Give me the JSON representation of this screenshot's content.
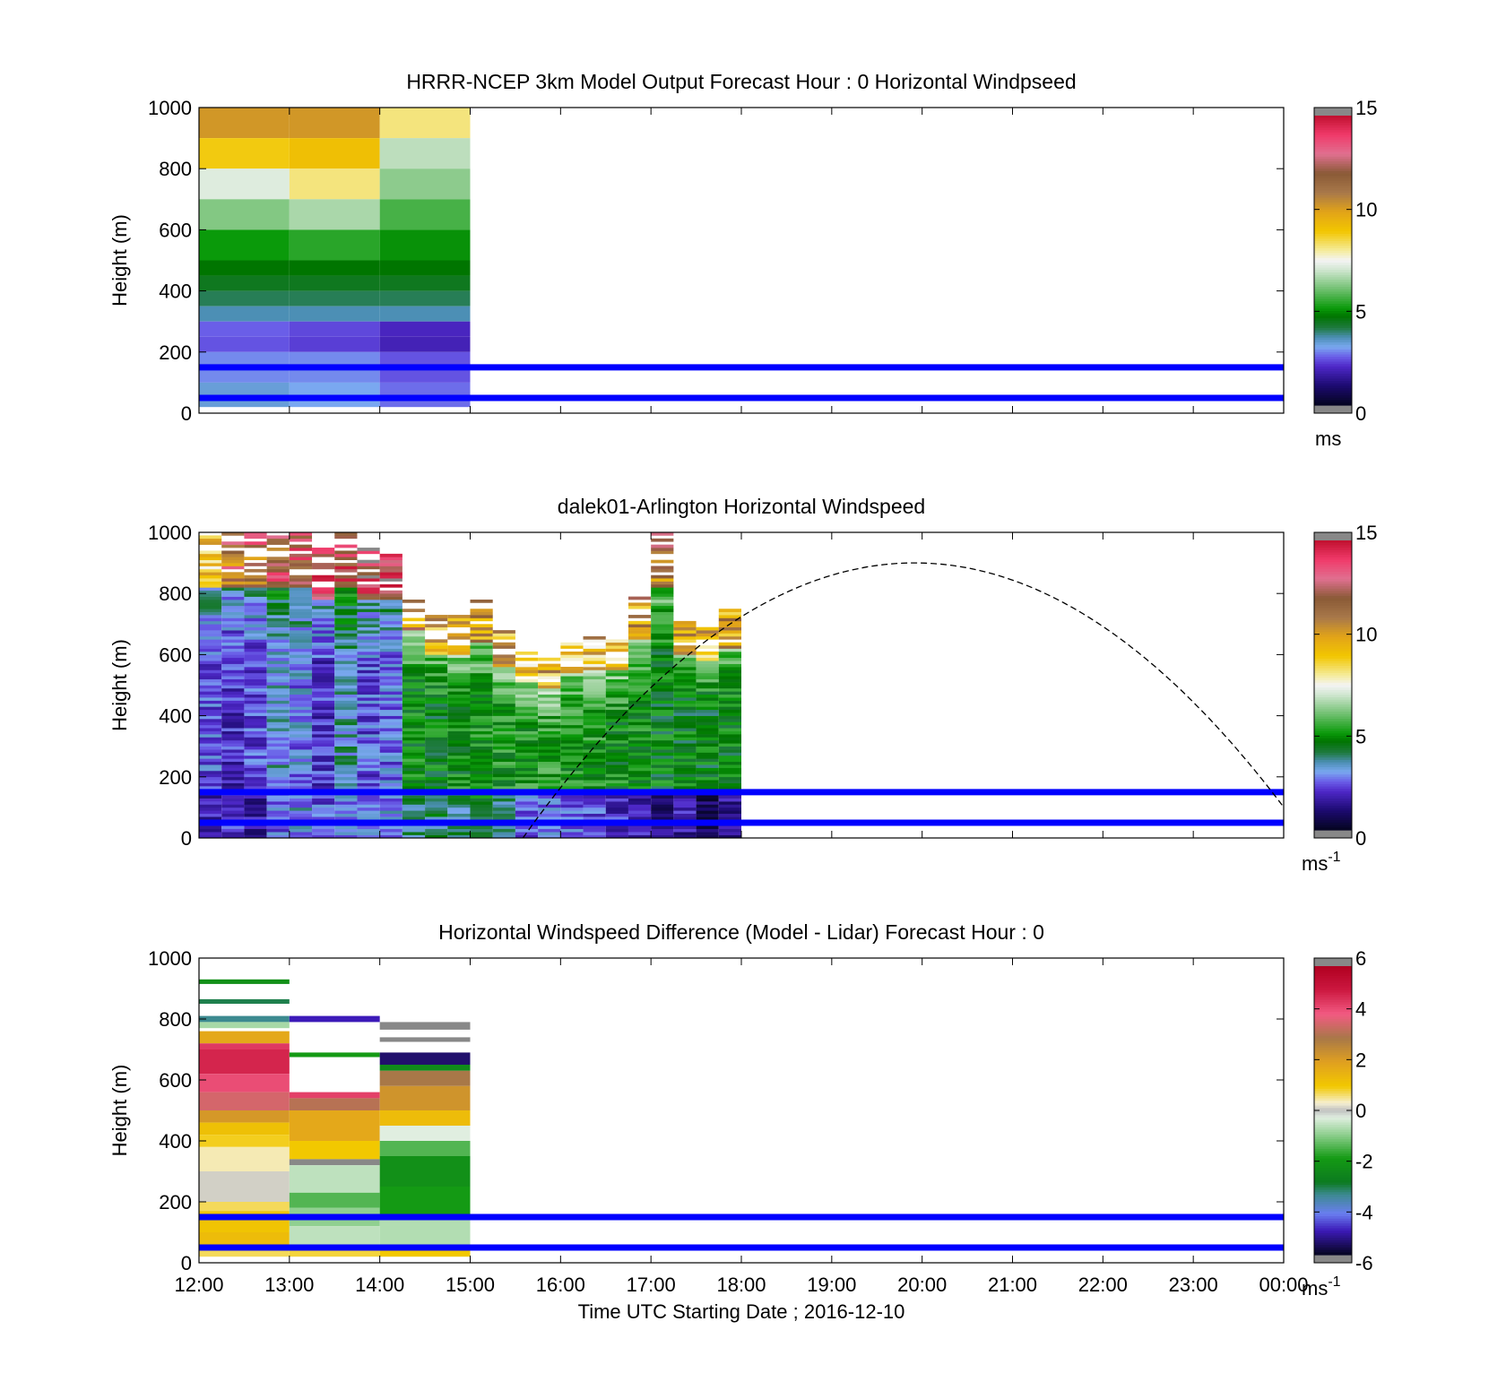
{
  "figure": {
    "xlabel": "Time UTC  Starting Date ; 2016-12-10",
    "x_tick_labels": [
      "12:00",
      "13:00",
      "14:00",
      "15:00",
      "16:00",
      "17:00",
      "18:00",
      "19:00",
      "20:00",
      "21:00",
      "22:00",
      "23:00",
      "00:00"
    ],
    "ylabel": "Height (m)",
    "y_tick_labels": [
      "0",
      "200",
      "400",
      "600",
      "800",
      "1000"
    ]
  },
  "colors": {
    "reference_lines": "#0000ff",
    "missing_gray": "#888888"
  },
  "chart_data": [
    {
      "type": "heatmap",
      "title": "HRRR-NCEP 3km Model Output   Forecast Hour : 0 Horizontal Windpseed",
      "xlabel": "",
      "ylabel": "Height (m)",
      "xlim": [
        "12:00",
        "00:00"
      ],
      "ylim": [
        0,
        1000
      ],
      "colorbar": {
        "min": 0,
        "max": 15,
        "ticks": [
          "0",
          "5",
          "10",
          "15"
        ],
        "unit": "ms",
        "unit_sup": ""
      },
      "reference_lines_m": [
        50,
        150
      ],
      "columns": [
        {
          "start": "12:00",
          "end": "13:00",
          "cells": [
            [
              1000,
              900,
              10.3
            ],
            [
              900,
              800,
              8.9
            ],
            [
              800,
              700,
              7.2
            ],
            [
              700,
              600,
              6.2
            ],
            [
              600,
              500,
              5.0
            ],
            [
              500,
              450,
              4.6
            ],
            [
              450,
              400,
              4.3
            ],
            [
              400,
              350,
              3.9
            ],
            [
              350,
              300,
              3.5
            ],
            [
              300,
              250,
              2.5
            ],
            [
              250,
              200,
              2.4
            ],
            [
              200,
              100,
              2.8
            ],
            [
              100,
              20,
              3.2
            ]
          ]
        },
        {
          "start": "13:00",
          "end": "14:00",
          "cells": [
            [
              1000,
              900,
              10.3
            ],
            [
              900,
              800,
              9.2
            ],
            [
              800,
              700,
              8.2
            ],
            [
              700,
              600,
              6.6
            ],
            [
              600,
              500,
              5.3
            ],
            [
              500,
              450,
              4.6
            ],
            [
              450,
              400,
              4.3
            ],
            [
              400,
              350,
              3.9
            ],
            [
              350,
              300,
              3.5
            ],
            [
              300,
              250,
              2.3
            ],
            [
              250,
              200,
              2.2
            ],
            [
              200,
              100,
              2.8
            ],
            [
              100,
              20,
              3.0
            ]
          ]
        },
        {
          "start": "14:00",
          "end": "15:00",
          "cells": [
            [
              1000,
              900,
              8.2
            ],
            [
              900,
              800,
              6.8
            ],
            [
              800,
              700,
              6.3
            ],
            [
              700,
              600,
              5.6
            ],
            [
              600,
              500,
              4.9
            ],
            [
              500,
              450,
              4.6
            ],
            [
              450,
              400,
              4.3
            ],
            [
              400,
              350,
              3.9
            ],
            [
              350,
              300,
              3.5
            ],
            [
              300,
              250,
              1.9
            ],
            [
              250,
              200,
              1.8
            ],
            [
              200,
              100,
              2.4
            ],
            [
              100,
              20,
              2.6
            ]
          ]
        }
      ]
    },
    {
      "type": "heatmap",
      "title": "dalek01-Arlington  Horizontal Windspeed",
      "xlabel": "",
      "ylabel": "Height (m)",
      "xlim": [
        "12:00",
        "00:00"
      ],
      "ylim": [
        0,
        1000
      ],
      "colorbar": {
        "min": 0,
        "max": 15,
        "ticks": [
          "0",
          "5",
          "10",
          "15"
        ],
        "unit": "ms",
        "unit_sup": "-1"
      },
      "reference_lines_m": [
        50,
        150
      ],
      "overlay_curve": {
        "style": "dashed",
        "peak_height_m": 900,
        "peak_time": "19:55",
        "zero_time": "15:35",
        "end_time": "00:00",
        "end_height_m": 75
      },
      "lidar_profiles": [
        {
          "start": "12:00",
          "end": "12:15",
          "top_m": 1000,
          "low_jet": 1.8,
          "mid": 2.4,
          "upper": 9.5
        },
        {
          "start": "12:15",
          "end": "12:30",
          "top_m": 1000,
          "low_jet": 2.2,
          "mid": 2.0,
          "upper": 11.5
        },
        {
          "start": "12:30",
          "end": "12:45",
          "top_m": 1000,
          "low_jet": 1.6,
          "mid": 2.2,
          "upper": 12.0
        },
        {
          "start": "12:45",
          "end": "13:00",
          "top_m": 1000,
          "low_jet": 2.6,
          "mid": 3.2,
          "upper": 12.5
        },
        {
          "start": "13:00",
          "end": "13:15",
          "top_m": 1000,
          "low_jet": 3.0,
          "mid": 2.8,
          "upper": 12.8
        },
        {
          "start": "13:15",
          "end": "13:30",
          "top_m": 950,
          "low_jet": 2.4,
          "mid": 2.1,
          "upper": 13.0
        },
        {
          "start": "13:30",
          "end": "13:45",
          "top_m": 1000,
          "low_jet": 2.8,
          "mid": 3.5,
          "upper": 13.2
        },
        {
          "start": "13:45",
          "end": "14:00",
          "top_m": 950,
          "low_jet": 2.6,
          "mid": 2.4,
          "upper": 13.5
        },
        {
          "start": "14:00",
          "end": "14:15",
          "top_m": 950,
          "low_jet": 2.9,
          "mid": 2.6,
          "upper": 13.5
        },
        {
          "start": "14:15",
          "end": "14:30",
          "top_m": 820,
          "low_jet": 3.8,
          "mid": 4.8,
          "upper": 10.5
        },
        {
          "start": "14:30",
          "end": "14:45",
          "top_m": 730,
          "low_jet": 4.0,
          "mid": 4.6,
          "upper": 10.0
        },
        {
          "start": "14:45",
          "end": "15:00",
          "top_m": 730,
          "low_jet": 3.8,
          "mid": 4.8,
          "upper": 10.0
        },
        {
          "start": "15:00",
          "end": "15:15",
          "top_m": 780,
          "low_jet": 4.4,
          "mid": 4.9,
          "upper": 10.5
        },
        {
          "start": "15:15",
          "end": "15:30",
          "top_m": 680,
          "low_jet": 4.0,
          "mid": 5.0,
          "upper": 10.0
        },
        {
          "start": "15:30",
          "end": "15:45",
          "top_m": 610,
          "low_jet": 2.5,
          "mid": 5.1,
          "upper": 9.5
        },
        {
          "start": "15:45",
          "end": "16:00",
          "top_m": 590,
          "low_jet": 2.6,
          "mid": 5.2,
          "upper": 9.4
        },
        {
          "start": "16:00",
          "end": "16:15",
          "top_m": 650,
          "low_jet": 2.5,
          "mid": 5.0,
          "upper": 9.5
        },
        {
          "start": "16:15",
          "end": "16:30",
          "top_m": 660,
          "low_jet": 2.3,
          "mid": 5.1,
          "upper": 9.5
        },
        {
          "start": "16:30",
          "end": "16:45",
          "top_m": 660,
          "low_jet": 2.0,
          "mid": 4.8,
          "upper": 9.6
        },
        {
          "start": "16:45",
          "end": "17:00",
          "top_m": 790,
          "low_jet": 1.6,
          "mid": 4.8,
          "upper": 10.5
        },
        {
          "start": "17:00",
          "end": "17:15",
          "top_m": 1000,
          "low_jet": 1.2,
          "mid": 4.6,
          "upper": 11.0
        },
        {
          "start": "17:15",
          "end": "17:30",
          "top_m": 730,
          "low_jet": 1.6,
          "mid": 4.5,
          "upper": 10.0
        },
        {
          "start": "17:30",
          "end": "17:45",
          "top_m": 700,
          "low_jet": 0.8,
          "mid": 4.5,
          "upper": 9.5
        },
        {
          "start": "17:45",
          "end": "18:00",
          "top_m": 750,
          "low_jet": 1.4,
          "mid": 4.6,
          "upper": 10.0
        }
      ]
    },
    {
      "type": "heatmap",
      "title": "Horizontal Windspeed Difference (Model - Lidar) Forecast Hour : 0",
      "xlabel": "Time UTC  Starting Date ; 2016-12-10",
      "ylabel": "Height (m)",
      "xlim": [
        "12:00",
        "00:00"
      ],
      "ylim": [
        0,
        1000
      ],
      "colorbar": {
        "min": -6,
        "max": 6,
        "ticks": [
          "-6",
          "-4",
          "-2",
          "0",
          "2",
          "4",
          "6"
        ],
        "unit": "ms",
        "unit_sup": "-1"
      },
      "reference_lines_m": [
        50,
        150
      ],
      "columns": [
        {
          "start": "12:00",
          "end": "13:00",
          "cells": [
            [
              930,
              915,
              -2.3
            ],
            [
              865,
              850,
              -3.2
            ],
            [
              810,
              790,
              -3.5
            ],
            [
              790,
              770,
              -0.8
            ],
            [
              760,
              720,
              1.8
            ],
            [
              720,
              700,
              4.5
            ],
            [
              700,
              620,
              4.8
            ],
            [
              620,
              560,
              4.2
            ],
            [
              560,
              500,
              3.6
            ],
            [
              500,
              460,
              2.2
            ],
            [
              460,
              420,
              1.2
            ],
            [
              420,
              380,
              0.9
            ],
            [
              380,
              300,
              0.4
            ],
            [
              300,
              200,
              0.1
            ],
            [
              200,
              170,
              0.7
            ],
            [
              170,
              100,
              1.1
            ],
            [
              100,
              40,
              1.3
            ],
            [
              40,
              20,
              0.7
            ]
          ]
        },
        {
          "start": "13:00",
          "end": "14:00",
          "cells": [
            [
              810,
              790,
              -5.0
            ],
            [
              690,
              675,
              -2.0
            ],
            [
              560,
              540,
              4.4
            ],
            [
              540,
              500,
              3.2
            ],
            [
              500,
              400,
              1.8
            ],
            [
              400,
              340,
              1.0
            ],
            [
              340,
              320,
              -6.5
            ],
            [
              320,
              230,
              -0.6
            ],
            [
              230,
              180,
              -1.5
            ],
            [
              180,
              120,
              -1.0
            ],
            [
              120,
              60,
              -0.6
            ],
            [
              60,
              40,
              -0.3
            ],
            [
              40,
              20,
              0.8
            ]
          ]
        },
        {
          "start": "14:00",
          "end": "15:00",
          "cells": [
            [
              790,
              765,
              -6.5
            ],
            [
              740,
              725,
              -6.5
            ],
            [
              690,
              650,
              -5.5
            ],
            [
              650,
              630,
              -2.5
            ],
            [
              630,
              580,
              3.0
            ],
            [
              580,
              500,
              2.3
            ],
            [
              500,
              450,
              1.3
            ],
            [
              450,
              400,
              -0.3
            ],
            [
              400,
              350,
              -1.5
            ],
            [
              350,
              250,
              -2.3
            ],
            [
              250,
              150,
              -2.0
            ],
            [
              150,
              60,
              -0.7
            ],
            [
              40,
              20,
              1.0
            ]
          ]
        }
      ]
    }
  ]
}
